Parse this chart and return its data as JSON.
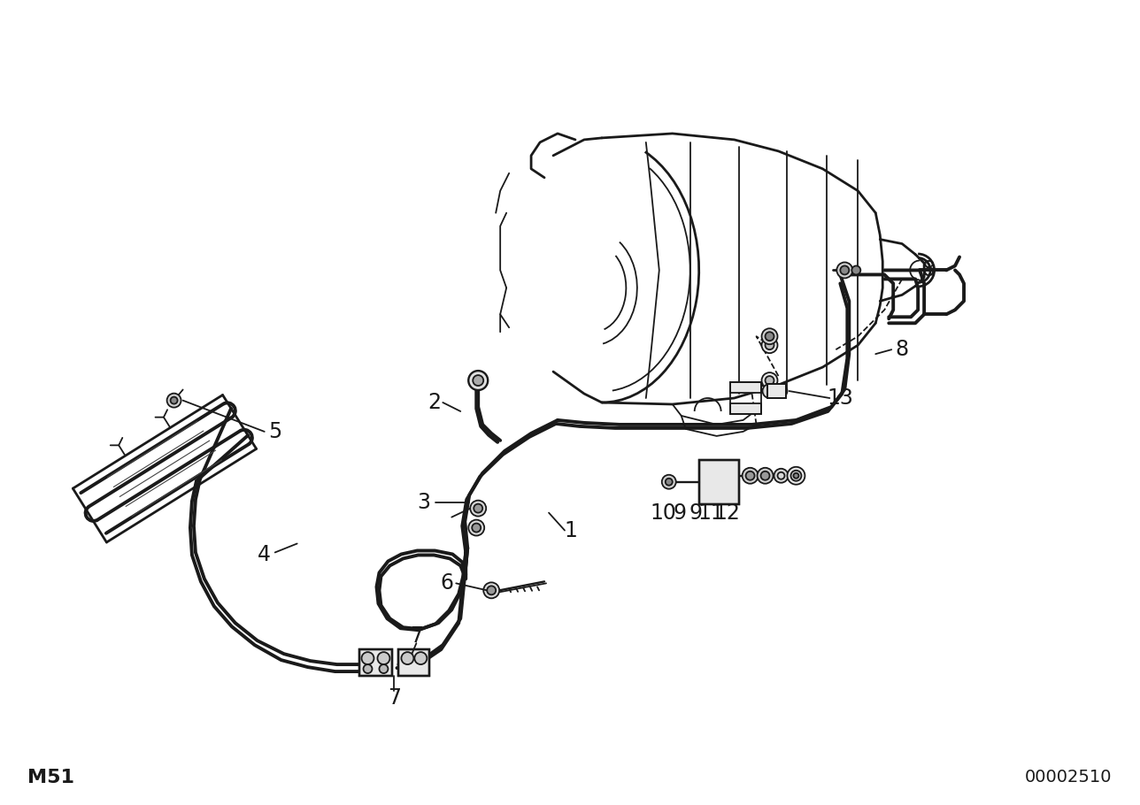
{
  "bg_color": "#ffffff",
  "line_color": "#1a1a1a",
  "label_color": "#000000",
  "bottom_left_text": "M51",
  "bottom_right_text": "00002510",
  "figsize": [
    12.88,
    9.1
  ],
  "dpi": 100
}
